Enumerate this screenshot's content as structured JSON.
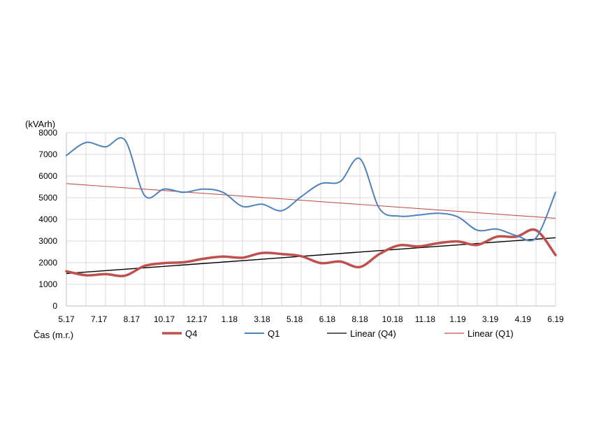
{
  "chart_data": {
    "type": "line",
    "ylabel": "(kVArh)",
    "xlabel": "Čas (m.r.)",
    "ylim": [
      0,
      8000
    ],
    "y_ticks": [
      "0",
      "1000",
      "2000",
      "3000",
      "4000",
      "5000",
      "6000",
      "7000",
      "8000"
    ],
    "x_ticks": [
      "5.17",
      "7.17",
      "8.17",
      "10.17",
      "12.17",
      "1.18",
      "3.18",
      "5.18",
      "6.18",
      "8.18",
      "10.18",
      "11.18",
      "1.19",
      "3.19",
      "4.19",
      "6.19"
    ],
    "grid": true,
    "legend_position": "bottom",
    "series": [
      {
        "name": "Q4",
        "color": "#c0504d",
        "style": "smooth-thick",
        "values": [
          1600,
          1420,
          1470,
          1400,
          1850,
          1980,
          2020,
          2180,
          2280,
          2230,
          2450,
          2400,
          2300,
          1980,
          2050,
          1800,
          2400,
          2800,
          2750,
          2900,
          2980,
          2820,
          3200,
          3200,
          3500,
          2350
        ]
      },
      {
        "name": "Q1",
        "color": "#4f81bd",
        "style": "smooth",
        "values": [
          6950,
          7550,
          7350,
          7650,
          5100,
          5400,
          5250,
          5400,
          5250,
          4600,
          4700,
          4400,
          5050,
          5650,
          5750,
          6800,
          4500,
          4150,
          4200,
          4280,
          4120,
          3500,
          3550,
          3250,
          3150,
          5250
        ]
      },
      {
        "name": "Linear (Q4)",
        "color": "#000000",
        "style": "trend",
        "values": [
          1500,
          3150
        ]
      },
      {
        "name": "Linear (Q1)",
        "color": "#c0504d",
        "style": "trend",
        "values": [
          5650,
          4050
        ]
      }
    ]
  }
}
